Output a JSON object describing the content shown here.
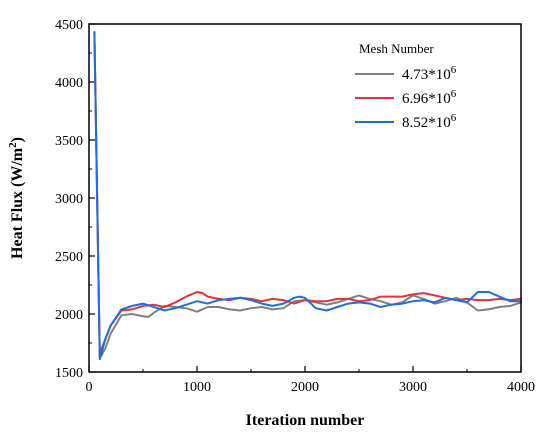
{
  "chart_data": {
    "type": "line",
    "xlabel": "Iteration number",
    "ylabel_main": "Heat Flux (W/m",
    "ylabel_sup": "2",
    "ylabel_end": ")",
    "xlim": [
      0,
      4000
    ],
    "ylim": [
      1500,
      4500
    ],
    "x_ticks": [
      "0",
      "1000",
      "2000",
      "3000",
      "4000"
    ],
    "y_ticks": [
      "1500",
      "2000",
      "2500",
      "3000",
      "3500",
      "4000",
      "4500"
    ],
    "legend_title": "Mesh Number",
    "legend_position": "top-right",
    "grid": false,
    "series": [
      {
        "base": "4.73*10",
        "sup": "6",
        "color": "#808080",
        "x": [
          50,
          100,
          150,
          200,
          300,
          400,
          500,
          550,
          600,
          700,
          800,
          900,
          1000,
          1100,
          1200,
          1300,
          1400,
          1500,
          1600,
          1700,
          1800,
          1900,
          2000,
          2100,
          2200,
          2300,
          2400,
          2500,
          2600,
          2700,
          2800,
          2900,
          3000,
          3100,
          3200,
          3300,
          3400,
          3500,
          3600,
          3700,
          3800,
          3900,
          4000
        ],
        "y": [
          4430,
          1620,
          1700,
          1830,
          1990,
          2000,
          1980,
          1975,
          2010,
          2070,
          2060,
          2050,
          2020,
          2060,
          2060,
          2040,
          2030,
          2050,
          2060,
          2040,
          2050,
          2110,
          2120,
          2100,
          2080,
          2100,
          2130,
          2160,
          2130,
          2110,
          2080,
          2100,
          2160,
          2130,
          2090,
          2110,
          2140,
          2100,
          2030,
          2040,
          2060,
          2070,
          2100
        ]
      },
      {
        "base": "6.96*10",
        "sup": "6",
        "color": "#e8303a",
        "x": [
          50,
          100,
          150,
          200,
          300,
          400,
          500,
          600,
          700,
          800,
          900,
          1000,
          1050,
          1100,
          1200,
          1300,
          1400,
          1500,
          1600,
          1700,
          1800,
          1900,
          2000,
          2100,
          2200,
          2300,
          2400,
          2500,
          2600,
          2700,
          2800,
          2900,
          3000,
          3100,
          3200,
          3300,
          3400,
          3500,
          3600,
          3700,
          3800,
          3900,
          4000
        ],
        "y": [
          4430,
          1660,
          1780,
          1900,
          2030,
          2040,
          2070,
          2080,
          2060,
          2100,
          2150,
          2190,
          2180,
          2150,
          2130,
          2120,
          2140,
          2130,
          2110,
          2130,
          2120,
          2090,
          2120,
          2110,
          2110,
          2130,
          2130,
          2110,
          2120,
          2150,
          2150,
          2150,
          2170,
          2180,
          2160,
          2140,
          2120,
          2130,
          2120,
          2120,
          2130,
          2120,
          2130
        ]
      },
      {
        "base": "8.52*10",
        "sup": "6",
        "color": "#1f6fd6",
        "x": [
          50,
          100,
          150,
          200,
          300,
          400,
          500,
          600,
          700,
          800,
          900,
          1000,
          1100,
          1200,
          1300,
          1400,
          1500,
          1600,
          1700,
          1800,
          1900,
          1950,
          2000,
          2100,
          2200,
          2300,
          2400,
          2500,
          2600,
          2700,
          2800,
          2900,
          3000,
          3100,
          3200,
          3300,
          3400,
          3500,
          3600,
          3700,
          3800,
          3900,
          4000
        ],
        "y": [
          4430,
          1610,
          1780,
          1900,
          2040,
          2070,
          2090,
          2060,
          2030,
          2050,
          2080,
          2110,
          2090,
          2120,
          2130,
          2140,
          2120,
          2090,
          2070,
          2090,
          2140,
          2150,
          2140,
          2050,
          2030,
          2060,
          2090,
          2100,
          2090,
          2060,
          2080,
          2090,
          2110,
          2120,
          2100,
          2140,
          2120,
          2100,
          2190,
          2190,
          2150,
          2110,
          2110
        ]
      }
    ]
  }
}
